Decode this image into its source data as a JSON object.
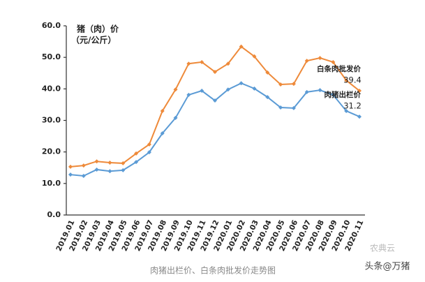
{
  "chart_data": {
    "type": "line",
    "y_label_line1": "猪（肉）价",
    "y_label_line2": "（元/公斤）",
    "caption": "肉猪出栏价、白条肉批发价走势图",
    "watermark": "头条@万猪",
    "watermark2": "农典云",
    "categories": [
      "2019.01",
      "2019.02",
      "2019.03",
      "2019.04",
      "2019.05",
      "2019.06",
      "2019.07",
      "2019.08",
      "2019.09",
      "2019.10",
      "2019.11",
      "2019.12",
      "2020.01",
      "2020.02",
      "2020.03",
      "2020.04",
      "2020.05",
      "2020.06",
      "2020.07",
      "2020.08",
      "2020.09",
      "2020.10",
      "2020.11"
    ],
    "series": [
      {
        "name": "白条肉批发价",
        "color": "#ee8a3a",
        "values": [
          15.3,
          15.7,
          17.0,
          16.6,
          16.4,
          19.5,
          22.4,
          33.0,
          39.8,
          48.0,
          48.5,
          45.4,
          48.0,
          53.4,
          50.3,
          45.2,
          41.4,
          41.6,
          48.9,
          49.8,
          48.5,
          42.7,
          39.4
        ]
      },
      {
        "name": "肉猪出栏价",
        "color": "#5b9bd5",
        "values": [
          12.8,
          12.4,
          14.4,
          13.9,
          14.2,
          16.8,
          19.9,
          25.9,
          30.8,
          38.1,
          39.4,
          36.3,
          39.8,
          41.8,
          40.1,
          37.4,
          34.1,
          33.9,
          39.0,
          39.6,
          38.1,
          33.0,
          31.2
        ]
      }
    ],
    "ylim": [
      0,
      60
    ],
    "yticks": [
      {
        "value": 0,
        "label": "0.0"
      },
      {
        "value": 10,
        "label": "10.0"
      },
      {
        "value": 20,
        "label": "20.0"
      },
      {
        "value": 30,
        "label": "30.0"
      },
      {
        "value": 40,
        "label": "40.0"
      },
      {
        "value": 50,
        "label": "50.0"
      },
      {
        "value": 60,
        "label": "60.0"
      }
    ],
    "grid": false
  }
}
